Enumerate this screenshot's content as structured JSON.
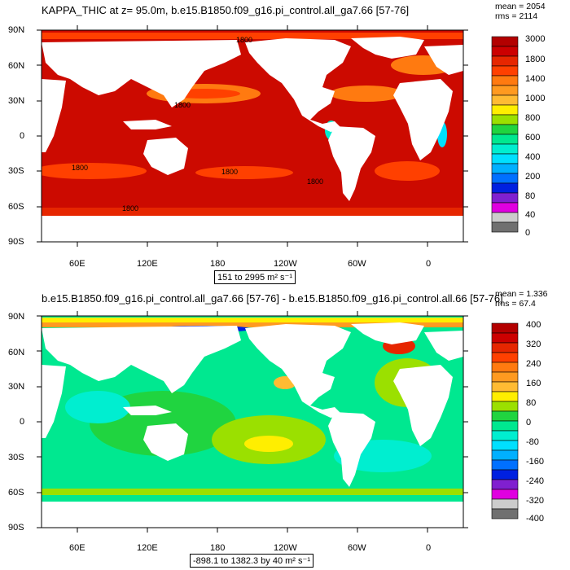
{
  "panel1": {
    "title": "KAPPA_THIC at z=  95.0m, b.e15.B1850.f09_g16.pi_control.all_ga7.66 [57-76]",
    "mean": "mean = 2054",
    "rms": "rms = 2114",
    "range": "151 to 2995 m² s⁻¹",
    "contour_labels": [
      "1800",
      "1800",
      "1800",
      "1800",
      "1800",
      "1800"
    ],
    "colorbar_labels": [
      "3000",
      "1800",
      "1400",
      "1000",
      "800",
      "600",
      "400",
      "200",
      "80",
      "40",
      "0"
    ],
    "colors": [
      "#b30000",
      "#cc0000",
      "#e62600",
      "#ff4000",
      "#ff7a10",
      "#ff9a20",
      "#ffbb33",
      "#ffee00",
      "#9be000",
      "#20d440",
      "#00e890",
      "#00eed0",
      "#00e0ff",
      "#00b0ff",
      "#0070ff",
      "#0020e0",
      "#8020d0",
      "#e000e0",
      "#cccccc",
      "#707070"
    ]
  },
  "panel2": {
    "title": "b.e15.B1850.f09_g16.pi_control.all_ga7.66 [57-76] - b.e15.B1850.f09_g16.pi_control.all.66 [57-76]",
    "mean": "mean = 1.336",
    "rms": "rms = 67.4",
    "range": "-898.1 to 1382.3 by 40 m² s⁻¹",
    "colorbar_labels": [
      "400",
      "320",
      "240",
      "160",
      "80",
      "0",
      "-80",
      "-160",
      "-240",
      "-320",
      "-400"
    ],
    "colors": [
      "#b30000",
      "#cc0000",
      "#e62600",
      "#ff4000",
      "#ff7a10",
      "#ff9a20",
      "#ffbb33",
      "#ffee00",
      "#9be000",
      "#20d440",
      "#00e890",
      "#00eed0",
      "#00e0ff",
      "#00b0ff",
      "#0070ff",
      "#0020e0",
      "#8020d0",
      "#e000e0",
      "#cccccc",
      "#707070"
    ]
  },
  "axes": {
    "lat_labels": [
      "90N",
      "60N",
      "30N",
      "0",
      "30S",
      "60S",
      "90S"
    ],
    "lon_labels": [
      "60E",
      "120E",
      "180",
      "120W",
      "60W",
      "0"
    ]
  }
}
